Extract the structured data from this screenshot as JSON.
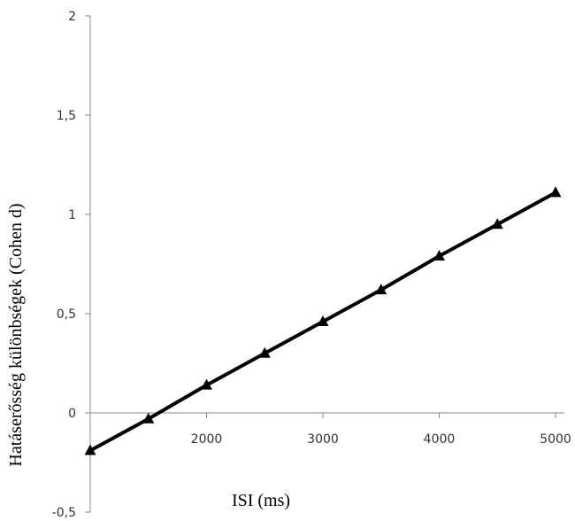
{
  "chart_data": {
    "type": "line",
    "xlabel": "ISI (ms)",
    "ylabel": "Hatáserősség különbségek (Cohen d)",
    "xlim": [
      1000,
      5000
    ],
    "ylim": [
      -0.5,
      2
    ],
    "x_ticks": [
      2000,
      3000,
      4000,
      5000
    ],
    "x_tick_labels": [
      "2000",
      "3000",
      "4000",
      "5000"
    ],
    "y_ticks": [
      2,
      1.5,
      1,
      0.5,
      0,
      -0.5
    ],
    "y_tick_labels": [
      "2",
      "1,5",
      "1",
      "0,5",
      "0",
      "-0,5"
    ],
    "grid": false,
    "legend": "none",
    "series": [
      {
        "marker": "triangle",
        "color": "#000000",
        "x": [
          1000,
          1500,
          2000,
          2500,
          3000,
          3500,
          4000,
          4500,
          5000
        ],
        "values": [
          -0.19,
          -0.03,
          0.14,
          0.3,
          0.46,
          0.62,
          0.79,
          0.95,
          1.11
        ]
      }
    ]
  }
}
